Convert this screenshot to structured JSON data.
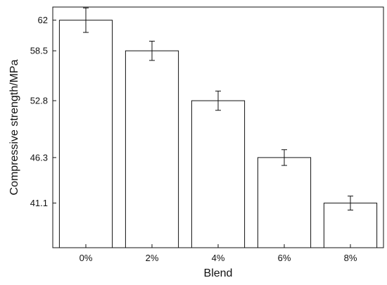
{
  "chart_data": {
    "type": "bar",
    "title": "",
    "xlabel": "Blend",
    "ylabel": "Compressive strength/MPa",
    "categories": [
      "0%",
      "2%",
      "4%",
      "6%",
      "8%"
    ],
    "values": [
      62.0,
      58.5,
      52.8,
      46.3,
      41.1
    ],
    "error": [
      1.4,
      1.1,
      1.1,
      0.9,
      0.8
    ],
    "y_ticks": [
      62,
      58.5,
      52.8,
      46.3,
      41.1
    ],
    "y_tick_labels": [
      "62",
      "58.5",
      "52.8",
      "46.3",
      "41.1"
    ],
    "ylim": [
      36.0,
      63.5
    ],
    "grid": false,
    "legend": "none",
    "bar_fill": "#ffffff",
    "bar_stroke": "#111111"
  }
}
